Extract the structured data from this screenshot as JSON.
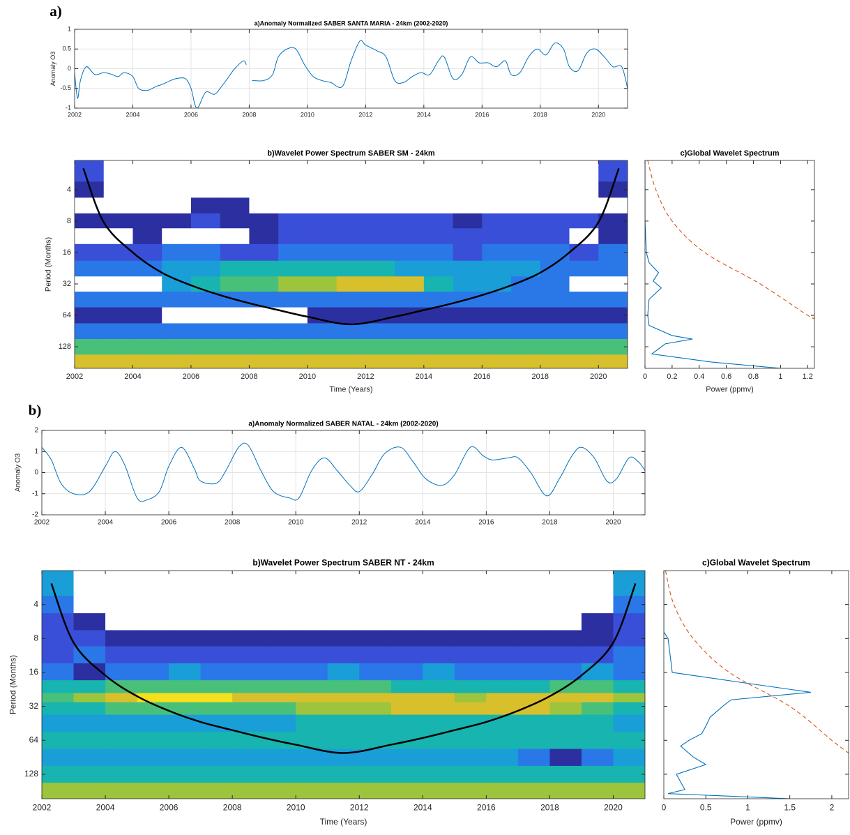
{
  "chart_data": [
    {
      "type": "line",
      "panel_label": "a)",
      "title": "a)Anomaly Normalized SABER SANTA MARIA - 24km (2002-2020)",
      "y_label": "Anomaly O3",
      "x": [
        2002.0,
        2002.1,
        2002.2,
        2002.4,
        2002.7,
        2003.0,
        2003.3,
        2003.5,
        2003.7,
        2004.0,
        2004.2,
        2004.5,
        2004.8,
        2005.0,
        2005.3,
        2005.5,
        2005.8,
        2006.0,
        2006.2,
        2006.5,
        2006.8,
        2007.0,
        2007.3,
        2007.5,
        2007.8,
        2007.9,
        2008.0,
        2008.1,
        2008.5,
        2008.8,
        2009.0,
        2009.3,
        2009.6,
        2009.9,
        2010.2,
        2010.5,
        2010.8,
        2011.2,
        2011.5,
        2011.8,
        2012.0,
        2012.4,
        2012.7,
        2013.0,
        2013.3,
        2013.6,
        2013.9,
        2014.2,
        2014.5,
        2014.7,
        2015.0,
        2015.3,
        2015.6,
        2015.9,
        2016.2,
        2016.5,
        2016.8,
        2017.0,
        2017.3,
        2017.6,
        2017.9,
        2018.2,
        2018.5,
        2018.8,
        2019.0,
        2019.3,
        2019.6,
        2019.9,
        2020.2,
        2020.5,
        2020.8,
        2021.0
      ],
      "values": [
        -0.1,
        -0.75,
        -0.3,
        0.05,
        -0.15,
        -0.1,
        -0.15,
        -0.2,
        -0.1,
        -0.2,
        -0.5,
        -0.55,
        -0.45,
        -0.4,
        -0.3,
        -0.25,
        -0.25,
        -0.5,
        -1.0,
        -0.6,
        -0.65,
        -0.5,
        -0.2,
        0.0,
        0.2,
        0.1,
        null,
        -0.3,
        -0.3,
        -0.15,
        0.3,
        0.5,
        0.5,
        0.1,
        -0.2,
        -0.3,
        -0.35,
        -0.45,
        0.2,
        0.7,
        0.6,
        0.45,
        0.3,
        -0.3,
        -0.35,
        -0.2,
        -0.1,
        -0.15,
        0.2,
        0.3,
        -0.25,
        -0.15,
        0.3,
        0.15,
        0.15,
        0.05,
        0.2,
        -0.15,
        -0.1,
        0.3,
        0.5,
        0.35,
        0.65,
        0.5,
        0.05,
        -0.05,
        0.4,
        0.5,
        0.3,
        0.05,
        0.05,
        -0.5
      ],
      "color": "#0072bd",
      "xlim": [
        2002,
        2021
      ],
      "ylim": [
        -1,
        1
      ],
      "xticks": [
        2002,
        2004,
        2006,
        2008,
        2010,
        2012,
        2014,
        2016,
        2018,
        2020
      ],
      "yticks": [
        -1,
        -0.5,
        0,
        0.5,
        1
      ],
      "grid": true
    },
    {
      "type": "heatmap",
      "title": "b)Wavelet Power Spectrum SABER SM - 24km",
      "x_label": "Time (Years)",
      "y_label": "Period (Months)",
      "log_scale": true,
      "xlim": [
        2002,
        2021
      ],
      "ylim": [
        2.1,
        206
      ],
      "xticks": [
        2002,
        2004,
        2006,
        2008,
        2010,
        2012,
        2014,
        2016,
        2018,
        2020
      ],
      "yticks": [
        4,
        8,
        16,
        32,
        64,
        128
      ],
      "colors": [
        "#ffffff",
        "#2c2fa0",
        "#3a4fd8",
        "#2a78e8",
        "#1a9ed8",
        "#18b4b0",
        "#48c07a",
        "#9cc43c",
        "#d8c02c",
        "#f4e01c"
      ],
      "x": [
        2002.5,
        2003.5,
        2004.5,
        2005.5,
        2006.5,
        2007.5,
        2008.5,
        2009.5,
        2010.5,
        2011.5,
        2012.5,
        2013.5,
        2014.5,
        2015.5,
        2016.5,
        2017.5,
        2018.5,
        2019.5,
        2020.5
      ],
      "y": [
        2.8,
        4,
        5.7,
        8,
        11,
        16,
        23,
        32,
        45,
        64,
        91,
        128,
        181
      ],
      "z": [
        [
          2,
          0,
          0,
          0,
          0,
          0,
          0,
          0,
          0,
          0,
          0,
          0,
          0,
          0,
          0,
          0,
          0,
          0,
          2
        ],
        [
          1,
          0,
          0,
          0,
          0,
          0,
          0,
          0,
          0,
          0,
          0,
          0,
          0,
          0,
          0,
          0,
          0,
          0,
          1
        ],
        [
          0,
          0,
          0,
          0,
          1,
          1,
          0,
          0,
          0,
          0,
          0,
          0,
          0,
          0,
          0,
          0,
          0,
          0,
          0
        ],
        [
          1,
          1,
          1,
          1,
          2,
          1,
          1,
          2,
          2,
          2,
          2,
          2,
          2,
          1,
          2,
          2,
          2,
          2,
          1
        ],
        [
          0,
          0,
          1,
          0,
          0,
          0,
          1,
          2,
          2,
          2,
          2,
          2,
          2,
          2,
          2,
          2,
          2,
          0,
          1
        ],
        [
          2,
          2,
          2,
          3,
          3,
          2,
          2,
          3,
          3,
          3,
          3,
          3,
          3,
          2,
          3,
          3,
          3,
          2,
          3
        ],
        [
          3,
          3,
          3,
          4,
          4,
          5,
          5,
          5,
          5,
          5,
          5,
          4,
          4,
          4,
          4,
          4,
          3,
          3,
          3
        ],
        [
          0,
          0,
          0,
          4,
          5,
          6,
          6,
          7,
          7,
          8,
          8,
          8,
          5,
          4,
          4,
          3,
          3,
          0,
          0
        ],
        [
          3,
          3,
          3,
          3,
          3,
          3,
          3,
          3,
          3,
          3,
          3,
          3,
          3,
          3,
          3,
          3,
          3,
          3,
          3
        ],
        [
          1,
          1,
          1,
          0,
          0,
          0,
          0,
          0,
          1,
          1,
          1,
          1,
          1,
          1,
          1,
          1,
          1,
          1,
          1
        ],
        [
          3,
          3,
          3,
          3,
          3,
          3,
          3,
          3,
          3,
          3,
          3,
          3,
          3,
          3,
          3,
          3,
          3,
          3,
          3
        ],
        [
          6,
          6,
          6,
          6,
          6,
          6,
          6,
          6,
          6,
          6,
          6,
          6,
          6,
          6,
          6,
          6,
          6,
          6,
          6
        ],
        [
          8,
          8,
          8,
          8,
          8,
          8,
          8,
          8,
          8,
          8,
          8,
          8,
          8,
          8,
          8,
          8,
          8,
          8,
          8
        ]
      ],
      "coi": {
        "x": [
          2002.3,
          2003,
          2004,
          2005,
          2006,
          2007,
          2008,
          2009,
          2010,
          2011.5,
          2013,
          2014,
          2015,
          2016,
          2017,
          2018,
          2019,
          2020,
          2020.7
        ],
        "y": [
          2.5,
          8.2,
          16,
          25,
          33,
          41,
          49,
          57,
          66,
          78,
          66,
          57,
          49,
          41,
          33,
          25,
          16,
          8.2,
          2.5
        ],
        "color": "#000000"
      }
    },
    {
      "type": "gws",
      "title": "c)Global Wavelet Spectrum",
      "x_label": "Power (ppmv)",
      "xlim": [
        0,
        1.25
      ],
      "ylim": [
        2.1,
        206
      ],
      "xticks": [
        0,
        0.2,
        0.4,
        0.6,
        0.8,
        1,
        1.2
      ],
      "yticks": [
        4,
        8,
        16,
        32,
        64,
        128
      ],
      "series": [
        {
          "color": "#0072bd",
          "y": [
            2.1,
            4,
            8,
            16,
            20,
            25,
            30,
            35,
            45,
            64,
            80,
            100,
            108,
            120,
            150,
            180,
            206
          ],
          "values": [
            0,
            0,
            0,
            0.01,
            0.03,
            0.1,
            0.06,
            0.12,
            0.03,
            0.02,
            0.03,
            0.2,
            0.35,
            0.15,
            0.05,
            0.5,
            1.0
          ]
        },
        {
          "color": "#d95319",
          "line_style": "dashed",
          "y": [
            2.1,
            4,
            8,
            16,
            32,
            64,
            67
          ],
          "values": [
            0.02,
            0.08,
            0.2,
            0.44,
            0.85,
            1.2,
            1.25
          ]
        }
      ]
    },
    {
      "type": "line",
      "panel_label": "b)",
      "title": "a)Anomaly Normalized SABER NATAL - 24km (2002-2020)",
      "y_label": "Anomaly O3",
      "x": [
        2002.0,
        2002.3,
        2002.6,
        2003.0,
        2003.5,
        2004.0,
        2004.3,
        2004.6,
        2005.0,
        2005.3,
        2005.7,
        2006.0,
        2006.4,
        2006.8,
        2007.0,
        2007.5,
        2007.8,
        2008.2,
        2008.5,
        2008.9,
        2009.3,
        2009.8,
        2010.1,
        2010.5,
        2010.9,
        2011.3,
        2011.7,
        2012.0,
        2012.4,
        2012.8,
        2013.3,
        2013.7,
        2014.1,
        2014.6,
        2015.0,
        2015.5,
        2015.9,
        2016.2,
        2016.7,
        2017.0,
        2017.4,
        2017.9,
        2018.3,
        2018.7,
        2019.0,
        2019.4,
        2019.8,
        2020.1,
        2020.5,
        2020.8,
        2021.0
      ],
      "values": [
        1.2,
        0.6,
        -0.5,
        -1.0,
        -0.9,
        0.3,
        1.0,
        0.4,
        -1.2,
        -1.3,
        -0.9,
        0.3,
        1.2,
        0.2,
        -0.4,
        -0.5,
        0.1,
        1.2,
        1.3,
        0.1,
        -0.9,
        -1.2,
        -1.2,
        0.1,
        0.7,
        0.1,
        -0.6,
        -0.9,
        -0.1,
        0.9,
        1.2,
        0.5,
        -0.3,
        -0.6,
        -0.1,
        1.2,
        0.8,
        0.6,
        0.7,
        0.7,
        0.0,
        -1.1,
        -0.3,
        0.8,
        1.2,
        0.7,
        -0.4,
        -0.3,
        0.7,
        0.5,
        0.1
      ],
      "color": "#0072bd",
      "xlim": [
        2002,
        2021
      ],
      "ylim": [
        -2,
        2
      ],
      "xticks": [
        2002,
        2004,
        2006,
        2008,
        2010,
        2012,
        2014,
        2016,
        2018,
        2020
      ],
      "yticks": [
        -2,
        -1,
        0,
        1,
        2
      ],
      "grid": true
    },
    {
      "type": "heatmap",
      "title": "b)Wavelet Power Spectrum SABER NT - 24km",
      "x_label": "Time (Years)",
      "y_label": "Period (Months)",
      "log_scale": true,
      "xlim": [
        2002,
        2021
      ],
      "ylim": [
        2,
        211
      ],
      "xticks": [
        2002,
        2004,
        2006,
        2008,
        2010,
        2012,
        2014,
        2016,
        2018,
        2020
      ],
      "yticks": [
        4,
        8,
        16,
        32,
        64,
        128
      ],
      "colors": [
        "#ffffff",
        "#2c2fa0",
        "#3a4fd8",
        "#2a78e8",
        "#1a9ed8",
        "#18b4b0",
        "#48c07a",
        "#9cc43c",
        "#d8c02c",
        "#f4e01c"
      ],
      "x": [
        2002.5,
        2003.5,
        2004.5,
        2005.5,
        2006.5,
        2007.5,
        2008.5,
        2009.5,
        2010.5,
        2011.5,
        2012.5,
        2013.5,
        2014.5,
        2015.5,
        2016.5,
        2017.5,
        2018.5,
        2019.5,
        2020.5
      ],
      "y": [
        2.8,
        4,
        5.7,
        8,
        11,
        16,
        22,
        27,
        32,
        45,
        64,
        91,
        128,
        181
      ],
      "z": [
        [
          4,
          0,
          0,
          0,
          0,
          0,
          0,
          0,
          0,
          0,
          0,
          0,
          0,
          0,
          0,
          0,
          0,
          0,
          4
        ],
        [
          3,
          0,
          0,
          0,
          0,
          0,
          0,
          0,
          0,
          0,
          0,
          0,
          0,
          0,
          0,
          0,
          0,
          0,
          3
        ],
        [
          2,
          1,
          0,
          0,
          0,
          0,
          0,
          0,
          0,
          0,
          0,
          0,
          0,
          0,
          0,
          0,
          0,
          1,
          2
        ],
        [
          2,
          2,
          1,
          1,
          1,
          1,
          1,
          1,
          1,
          1,
          1,
          1,
          1,
          1,
          1,
          1,
          1,
          1,
          2
        ],
        [
          2,
          3,
          2,
          2,
          2,
          2,
          2,
          2,
          2,
          2,
          2,
          2,
          2,
          2,
          2,
          2,
          2,
          2,
          3
        ],
        [
          3,
          1,
          3,
          3,
          4,
          3,
          3,
          3,
          3,
          4,
          3,
          3,
          4,
          3,
          3,
          3,
          3,
          4,
          3
        ],
        [
          5,
          5,
          6,
          6,
          6,
          6,
          6,
          6,
          6,
          6,
          6,
          5,
          5,
          5,
          5,
          5,
          6,
          6,
          5
        ],
        [
          6,
          7,
          8,
          9,
          9,
          9,
          8,
          8,
          8,
          8,
          8,
          8,
          8,
          7,
          8,
          8,
          8,
          8,
          7
        ],
        [
          5,
          5,
          6,
          6,
          6,
          6,
          6,
          6,
          7,
          7,
          7,
          8,
          8,
          8,
          8,
          8,
          7,
          6,
          5
        ],
        [
          4,
          4,
          4,
          4,
          4,
          4,
          4,
          4,
          5,
          5,
          5,
          5,
          5,
          5,
          5,
          5,
          5,
          5,
          4
        ],
        [
          5,
          5,
          5,
          5,
          5,
          5,
          5,
          5,
          5,
          5,
          5,
          5,
          5,
          5,
          5,
          5,
          5,
          5,
          5
        ],
        [
          4,
          4,
          4,
          4,
          4,
          4,
          4,
          4,
          4,
          4,
          4,
          4,
          4,
          4,
          4,
          3,
          1,
          3,
          4
        ],
        [
          5,
          5,
          5,
          5,
          5,
          5,
          5,
          5,
          5,
          5,
          5,
          5,
          5,
          5,
          5,
          5,
          5,
          5,
          5
        ],
        [
          7,
          7,
          7,
          7,
          7,
          7,
          7,
          7,
          7,
          7,
          7,
          7,
          7,
          7,
          7,
          7,
          7,
          7,
          7
        ]
      ],
      "coi": {
        "x": [
          2002.3,
          2003,
          2004,
          2005,
          2006,
          2007,
          2008,
          2009,
          2010,
          2011.5,
          2013,
          2014,
          2015,
          2016,
          2017,
          2018,
          2019,
          2020,
          2020.7
        ],
        "y": [
          2.6,
          8.7,
          17,
          26,
          35,
          44,
          52,
          61,
          70,
          83,
          70,
          61,
          52,
          44,
          35,
          26,
          17,
          8.7,
          2.6
        ],
        "color": "#000000"
      }
    },
    {
      "type": "gws",
      "title": "c)Global Wavelet Spectrum",
      "x_label": "Power (ppmv)",
      "xlim": [
        0,
        2.2
      ],
      "ylim": [
        2,
        211
      ],
      "xticks": [
        0,
        0.5,
        1,
        1.5,
        2
      ],
      "yticks": [
        4,
        8,
        16,
        32,
        64,
        128
      ],
      "series": [
        {
          "color": "#0072bd",
          "y": [
            2,
            7,
            8,
            12,
            16,
            20,
            24,
            28,
            32,
            40,
            48,
            56,
            64,
            72,
            90,
            105,
            128,
            150,
            175,
            190,
            211
          ],
          "values": [
            0,
            0,
            0.05,
            0.08,
            0.1,
            1.0,
            1.75,
            0.8,
            0.7,
            0.55,
            0.5,
            0.45,
            0.3,
            0.2,
            0.35,
            0.5,
            0.15,
            0.2,
            0.25,
            0.05,
            1.5
          ]
        },
        {
          "color": "#d95319",
          "line_style": "dashed",
          "y": [
            2,
            4,
            8,
            16,
            32,
            64,
            83
          ],
          "values": [
            0.02,
            0.12,
            0.35,
            0.78,
            1.5,
            2.0,
            2.2
          ]
        }
      ]
    }
  ]
}
